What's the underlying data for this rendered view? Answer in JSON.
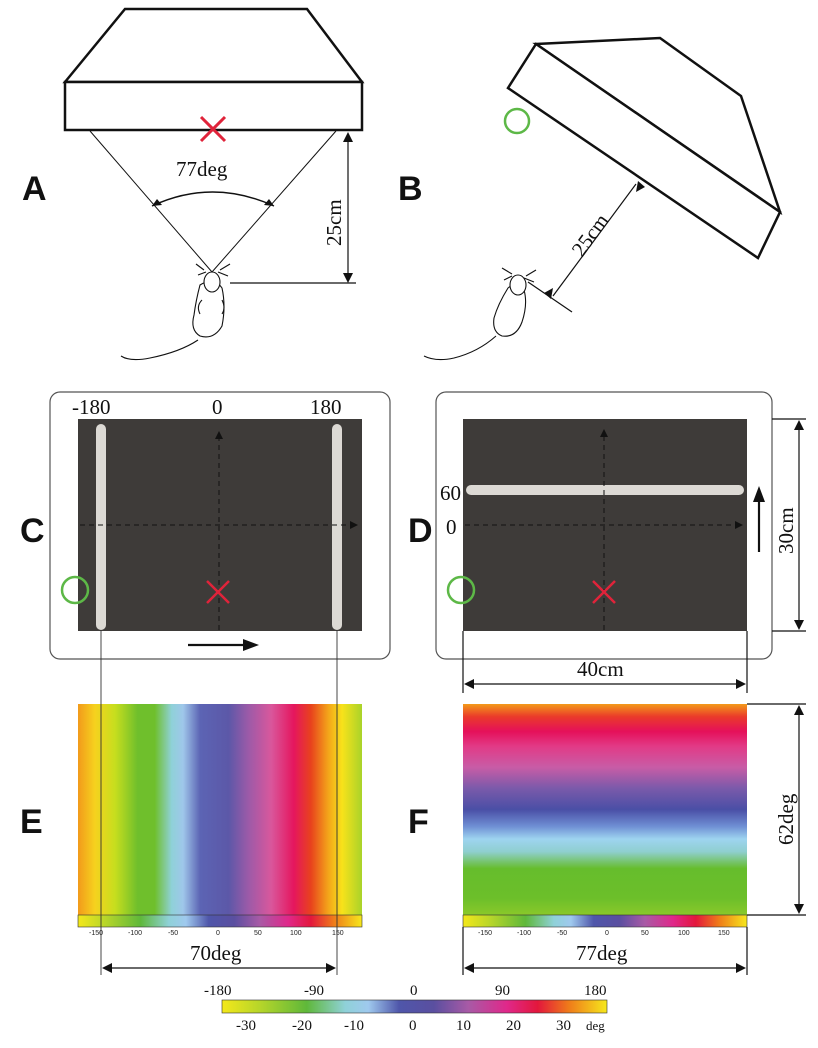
{
  "panels": {
    "a": {
      "letter": "A",
      "angle_label": "77deg",
      "distance_label": "25cm"
    },
    "b": {
      "letter": "B",
      "distance_label": "25cm"
    },
    "c": {
      "letter": "C",
      "ticks": [
        "-180",
        "0",
        "180"
      ]
    },
    "d": {
      "letter": "D",
      "ticks": [
        "60",
        "0"
      ],
      "height_label": "30cm",
      "width_label": "40cm"
    },
    "e": {
      "letter": "E",
      "width_label": "70deg",
      "bar_ticks": [
        "-150",
        "-100",
        "-50",
        "0",
        "50",
        "100",
        "150"
      ]
    },
    "f": {
      "letter": "F",
      "width_label": "77deg",
      "height_label": "62deg",
      "bar_ticks": [
        "-150",
        "-100",
        "-50",
        "0",
        "50",
        "100",
        "150"
      ]
    }
  },
  "colorbar": {
    "top_ticks": [
      "-180",
      "-90",
      "0",
      "90",
      "180"
    ],
    "bottom_ticks": [
      "-30",
      "-20",
      "-10",
      "0",
      "10",
      "20",
      "30"
    ],
    "unit": "deg"
  },
  "colors": {
    "screen_fill": "#3e3b39",
    "bar_fill": "#dcd9d4",
    "marker_cross": "#e0233a",
    "marker_circle": "#5db847"
  }
}
